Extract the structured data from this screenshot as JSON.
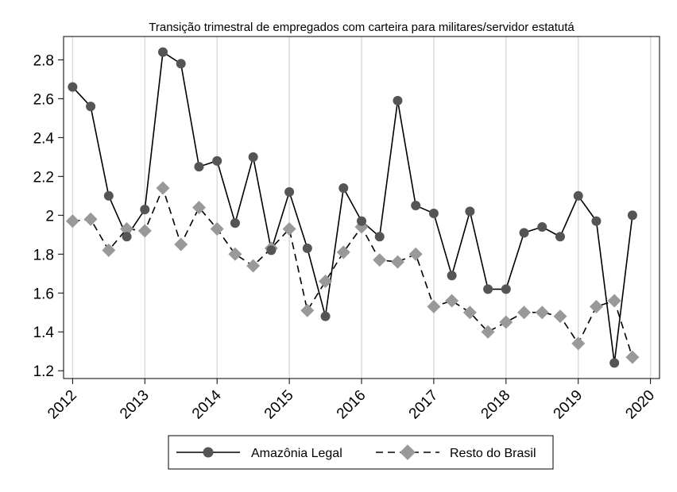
{
  "chart_data": {
    "type": "line",
    "title": "Transição trimestral de empregados com carteira para militares/servidor estatutá",
    "xlabel": "",
    "ylabel": "",
    "xlim": [
      2011.875,
      2020.125
    ],
    "ylim": [
      1.16,
      2.92
    ],
    "x_ticks": [
      2012,
      2013,
      2014,
      2015,
      2016,
      2017,
      2018,
      2019,
      2020
    ],
    "x_tick_labels": [
      "2012",
      "2013",
      "2014",
      "2015",
      "2016",
      "2017",
      "2018",
      "2019",
      "2020"
    ],
    "y_ticks": [
      1.2,
      1.4,
      1.6,
      1.8,
      2,
      2.2,
      2.4,
      2.6,
      2.8
    ],
    "y_tick_labels": [
      "1.2",
      "1.4",
      "1.6",
      "1.8",
      "2",
      "2.2",
      "2.4",
      "2.6",
      "2.8"
    ],
    "grid": "vertical",
    "legend": "bottom",
    "x": [
      2012.0,
      2012.25,
      2012.5,
      2012.75,
      2013.0,
      2013.25,
      2013.5,
      2013.75,
      2014.0,
      2014.25,
      2014.5,
      2014.75,
      2015.0,
      2015.25,
      2015.5,
      2015.75,
      2016.0,
      2016.25,
      2016.5,
      2016.75,
      2017.0,
      2017.25,
      2017.5,
      2017.75,
      2018.0,
      2018.25,
      2018.5,
      2018.75,
      2019.0,
      2019.25,
      2019.5,
      2019.75
    ],
    "series": [
      {
        "name": "Amazônia Legal",
        "color": "#555555",
        "line": "solid",
        "marker": "circle",
        "values": [
          2.66,
          2.56,
          2.1,
          1.89,
          2.03,
          2.84,
          2.78,
          2.25,
          2.28,
          1.96,
          2.3,
          1.82,
          2.12,
          1.83,
          1.48,
          2.14,
          1.97,
          1.89,
          2.59,
          2.05,
          2.01,
          1.69,
          2.02,
          1.62,
          1.62,
          1.91,
          1.94,
          1.89,
          2.1,
          1.97,
          1.24,
          2.0
        ]
      },
      {
        "name": "Resto do Brasil",
        "color": "#999999",
        "line": "dashed",
        "marker": "diamond",
        "values": [
          1.97,
          1.98,
          1.82,
          1.93,
          1.92,
          2.14,
          1.85,
          2.04,
          1.93,
          1.8,
          1.74,
          1.83,
          1.93,
          1.51,
          1.66,
          1.81,
          1.94,
          1.77,
          1.76,
          1.8,
          1.53,
          1.56,
          1.5,
          1.4,
          1.45,
          1.5,
          1.5,
          1.48,
          1.34,
          1.53,
          1.56,
          1.27
        ]
      }
    ]
  }
}
